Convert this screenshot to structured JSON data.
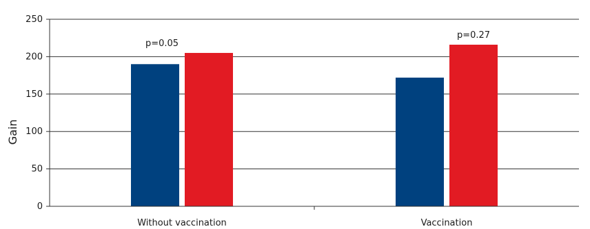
{
  "chart_data": {
    "type": "bar",
    "title": "",
    "xlabel": "",
    "ylabel": "Gain",
    "ylim": [
      0,
      250
    ],
    "yticks": [
      0,
      50,
      100,
      150,
      200,
      250
    ],
    "grid": true,
    "categories": [
      "Without vaccination",
      "Vaccination"
    ],
    "series": [
      {
        "values": [
          190,
          172
        ],
        "color": "#00417f"
      },
      {
        "values": [
          205,
          216
        ],
        "color": "#e21b23"
      }
    ],
    "annotations": [
      "p=0.05",
      "p=0.27"
    ]
  }
}
